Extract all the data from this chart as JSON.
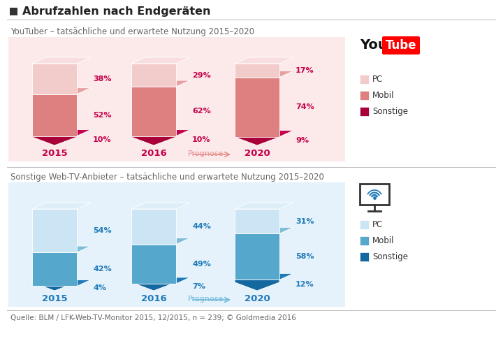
{
  "title": "Abrufzahlen nach Endgeräten",
  "section1_title": "YouTuber – tatsächliche und erwartete Nutzung 2015–2020",
  "section2_title": "Sonstige Web-TV-Anbieter – tatsächliche und erwartete Nutzung 2015–2020",
  "footer": "Quelle: BLM / LFK-Web-TV-Monitor 2015, 12/2015, n = 239; © Goldmedia 2016",
  "youtube": {
    "years": [
      "2015",
      "2016",
      "2020"
    ],
    "pc": [
      38,
      29,
      17
    ],
    "mobil": [
      52,
      62,
      74
    ],
    "sonstige": [
      10,
      10,
      9
    ],
    "colors": {
      "pc_top": "#f8dede",
      "pc_front": "#f2cbcb",
      "mobil_top": "#e8a0a0",
      "mobil_front": "#de8080",
      "sonstige_top": "#c4004a",
      "sonstige_front": "#aa003a",
      "bg": "#fceaea",
      "label_color": "#c4004a",
      "year_color": "#c4004a",
      "prognose_color": "#e89090"
    }
  },
  "webtv": {
    "years": [
      "2015",
      "2016",
      "2020"
    ],
    "pc": [
      54,
      44,
      31
    ],
    "mobil": [
      42,
      49,
      58
    ],
    "sonstige": [
      4,
      7,
      12
    ],
    "colors": {
      "pc_top": "#ddeef8",
      "pc_front": "#cce5f5",
      "mobil_top": "#80bdd8",
      "mobil_front": "#55a8cc",
      "sonstige_top": "#1e7ab8",
      "sonstige_front": "#1468a0",
      "bg": "#e5f2fb",
      "label_color": "#1e7ab8",
      "year_color": "#1e7ab8",
      "prognose_color": "#70b8d8"
    }
  }
}
